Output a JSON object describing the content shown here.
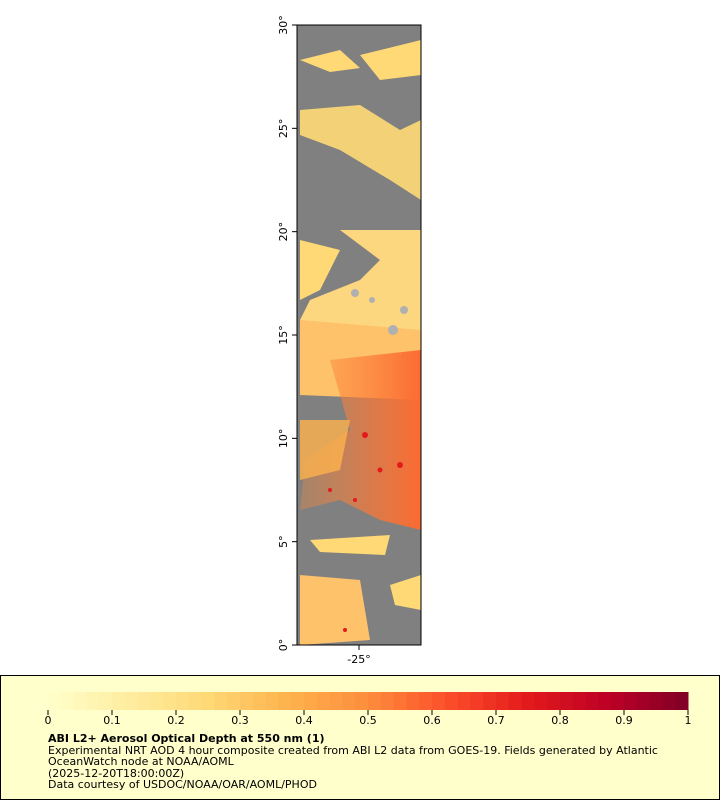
{
  "map": {
    "ylim": [
      0,
      30
    ],
    "xlim": [
      -28,
      -22
    ],
    "yticks": [
      {
        "value": 0,
        "label": "0°"
      },
      {
        "value": 5,
        "label": "5°"
      },
      {
        "value": 10,
        "label": "10°"
      },
      {
        "value": 15,
        "label": "15°"
      },
      {
        "value": 20,
        "label": "20°"
      },
      {
        "value": 25,
        "label": "25°"
      },
      {
        "value": 30,
        "label": "30°"
      }
    ],
    "xticks": [
      {
        "value": -25,
        "label": "-25°"
      }
    ]
  },
  "colorbar": {
    "range": [
      0,
      1
    ],
    "ticks": [
      0,
      0.1,
      0.2,
      0.3,
      0.4,
      0.5,
      0.6,
      0.7,
      0.8,
      0.9,
      1
    ]
  },
  "legend": {
    "title": "ABI L2+ Aerosol Optical Depth at 550 nm (1)",
    "lines": [
      "Experimental NRT AOD 4 hour composite created from ABI L2 data from GOES-19. Fields generated by Atlantic",
      "OceanWatch node at NOAA/AOML",
      "(2025-12-20T18:00:00Z)",
      "Data courtesy of USDOC/NOAA/OAR/AOML/PHOD"
    ]
  }
}
